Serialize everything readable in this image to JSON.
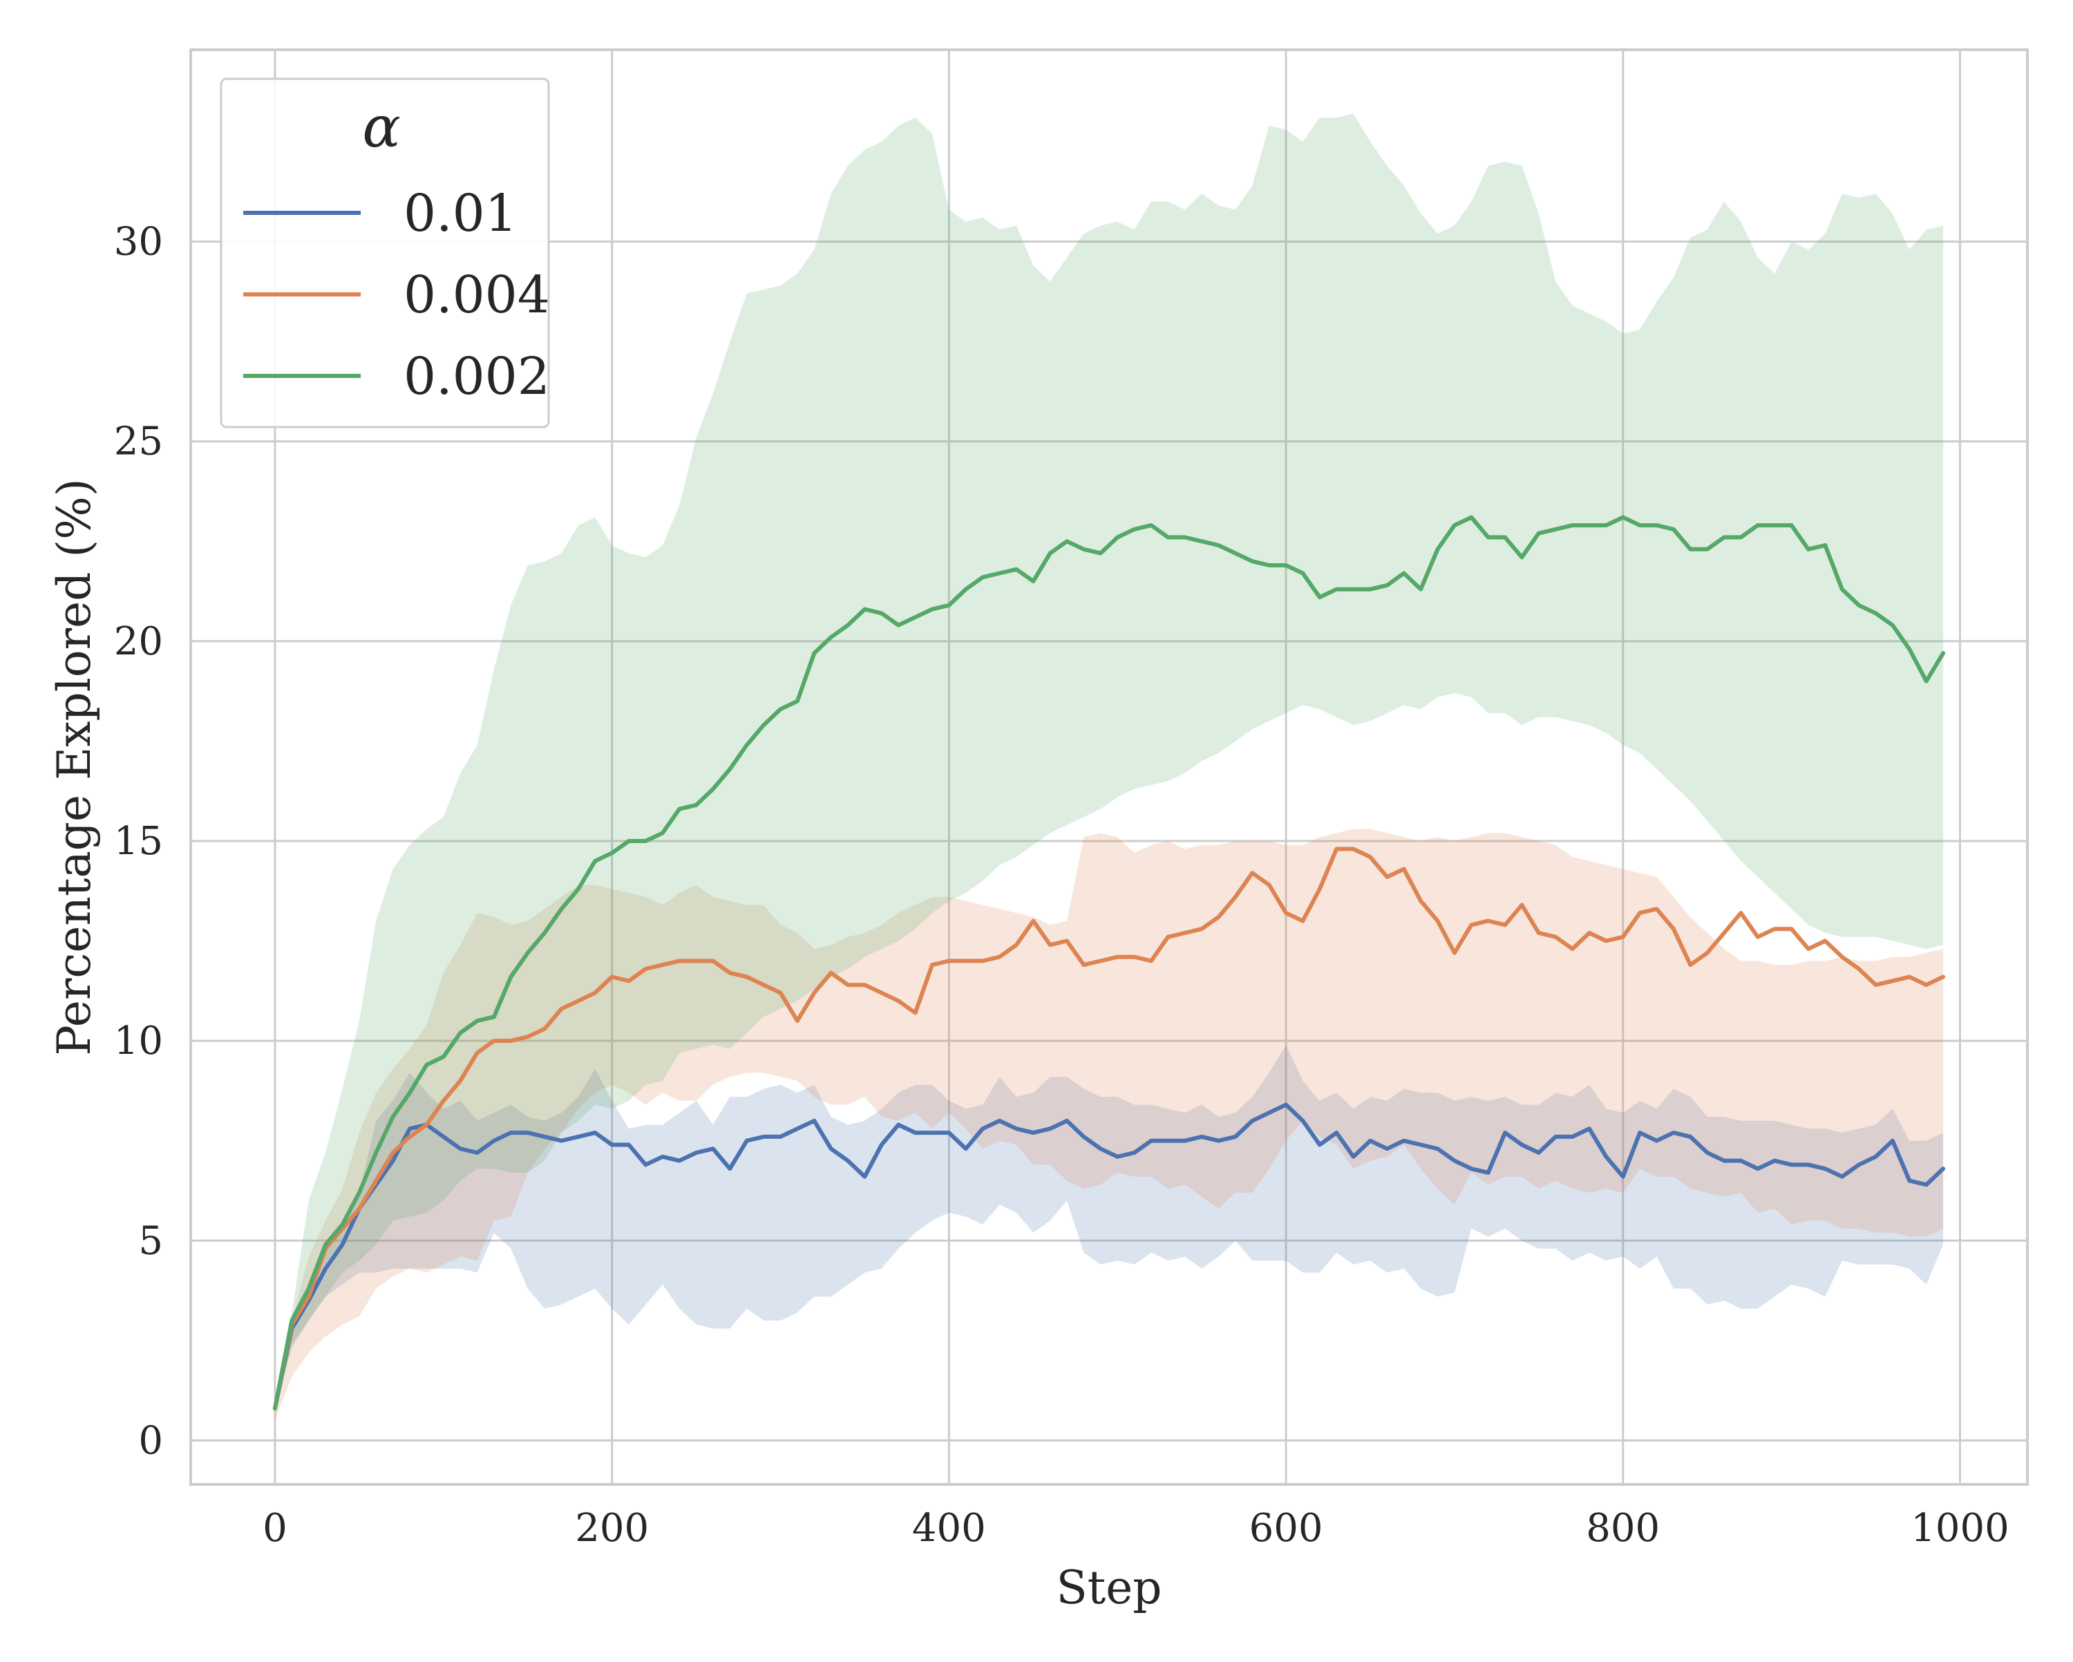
{
  "chart_data": {
    "type": "line",
    "title": "",
    "xlabel": "Step",
    "ylabel": "Percentage Explored (%)",
    "xlim": [
      -50,
      1040
    ],
    "ylim": [
      -1.1,
      34.8
    ],
    "x_ticks": [
      0,
      200,
      400,
      600,
      800,
      1000
    ],
    "y_ticks": [
      0,
      5,
      10,
      15,
      20,
      25,
      30
    ],
    "grid": true,
    "legend_title": "α",
    "legend_position": "upper left",
    "x": [
      0,
      10,
      20,
      30,
      40,
      50,
      60,
      70,
      80,
      90,
      100,
      110,
      120,
      130,
      140,
      150,
      160,
      170,
      180,
      190,
      200,
      210,
      220,
      230,
      240,
      250,
      260,
      270,
      280,
      290,
      300,
      310,
      320,
      330,
      340,
      350,
      360,
      370,
      380,
      390,
      400,
      410,
      420,
      430,
      440,
      450,
      460,
      470,
      480,
      490,
      500,
      510,
      520,
      530,
      540,
      550,
      560,
      570,
      580,
      590,
      600,
      610,
      620,
      630,
      640,
      650,
      660,
      670,
      680,
      690,
      700,
      710,
      720,
      730,
      740,
      750,
      760,
      770,
      780,
      790,
      800,
      810,
      820,
      830,
      840,
      850,
      860,
      870,
      880,
      890,
      900,
      910,
      920,
      930,
      940,
      950,
      960,
      970,
      980,
      990
    ],
    "series": [
      {
        "name": "0.01",
        "color": "#4c72b0",
        "values": [
          0.8,
          2.8,
          3.5,
          4.3,
          4.9,
          5.8,
          6.4,
          7.0,
          7.8,
          7.9,
          7.6,
          7.3,
          7.2,
          7.5,
          7.7,
          7.7,
          7.6,
          7.5,
          7.6,
          7.7,
          7.4,
          7.4,
          6.9,
          7.1,
          7.0,
          7.2,
          7.3,
          6.8,
          7.5,
          7.6,
          7.6,
          7.8,
          8.0,
          7.3,
          7.0,
          6.6,
          7.4,
          7.9,
          7.7,
          7.7,
          7.7,
          7.3,
          7.8,
          8.0,
          7.8,
          7.7,
          7.8,
          8.0,
          7.6,
          7.3,
          7.1,
          7.2,
          7.5,
          7.5,
          7.5,
          7.6,
          7.5,
          7.6,
          8.0,
          8.2,
          8.4,
          8.0,
          7.4,
          7.7,
          7.1,
          7.5,
          7.3,
          7.5,
          7.4,
          7.3,
          7.0,
          6.8,
          6.7,
          7.7,
          7.4,
          7.2,
          7.6,
          7.6,
          7.8,
          7.1,
          6.6,
          7.7,
          7.5,
          7.7,
          7.6,
          7.2,
          7.0,
          7.0,
          6.8,
          7.0,
          6.9,
          6.9,
          6.8,
          6.6,
          6.9,
          7.1,
          7.5,
          6.5,
          6.4,
          6.8
        ],
        "lower": [
          0.8,
          2.4,
          3.0,
          3.6,
          3.9,
          4.2,
          4.2,
          4.3,
          4.3,
          4.3,
          4.3,
          4.3,
          4.2,
          5.2,
          4.8,
          3.8,
          3.3,
          3.4,
          3.6,
          3.8,
          3.3,
          2.9,
          3.4,
          3.9,
          3.3,
          2.9,
          2.8,
          2.8,
          3.3,
          3.0,
          3.0,
          3.2,
          3.6,
          3.6,
          3.9,
          4.2,
          4.3,
          4.8,
          5.2,
          5.5,
          5.7,
          5.6,
          5.4,
          5.9,
          5.7,
          5.2,
          5.5,
          6.0,
          4.7,
          4.4,
          4.5,
          4.4,
          4.7,
          4.5,
          4.6,
          4.3,
          4.6,
          5.0,
          4.5,
          4.5,
          4.5,
          4.2,
          4.2,
          4.7,
          4.4,
          4.5,
          4.2,
          4.3,
          3.8,
          3.6,
          3.7,
          5.3,
          5.1,
          5.3,
          5.0,
          4.8,
          4.8,
          4.5,
          4.7,
          4.5,
          4.6,
          4.3,
          4.6,
          3.8,
          3.8,
          3.4,
          3.5,
          3.3,
          3.3,
          3.6,
          3.9,
          3.8,
          3.6,
          4.5,
          4.4,
          4.4,
          4.4,
          4.3,
          3.9,
          4.9
        ],
        "upper": [
          0.8,
          2.9,
          3.8,
          4.8,
          5.5,
          6.2,
          8.0,
          8.5,
          9.2,
          8.7,
          8.3,
          8.5,
          8.0,
          8.2,
          8.4,
          8.1,
          8.0,
          8.2,
          8.6,
          9.3,
          8.5,
          7.8,
          7.9,
          7.9,
          8.2,
          8.5,
          7.9,
          8.6,
          8.6,
          8.8,
          8.9,
          8.7,
          8.9,
          8.1,
          7.9,
          8.0,
          8.3,
          8.7,
          8.9,
          8.9,
          8.5,
          8.3,
          8.4,
          9.1,
          8.6,
          8.7,
          9.1,
          9.1,
          8.8,
          8.6,
          8.6,
          8.4,
          8.4,
          8.3,
          8.2,
          8.4,
          8.1,
          8.2,
          8.6,
          9.2,
          9.9,
          9.0,
          8.5,
          8.7,
          8.3,
          8.6,
          8.5,
          8.8,
          8.7,
          8.7,
          8.5,
          8.6,
          8.5,
          8.6,
          8.4,
          8.4,
          8.7,
          8.6,
          8.9,
          8.3,
          8.2,
          8.5,
          8.3,
          8.8,
          8.6,
          8.1,
          8.1,
          8.0,
          8.0,
          8.0,
          7.9,
          7.8,
          7.8,
          7.7,
          7.8,
          7.9,
          8.3,
          7.5,
          7.5,
          7.7
        ]
      },
      {
        "name": "0.004",
        "color": "#dd8452",
        "values": [
          0.8,
          2.9,
          3.6,
          4.8,
          5.3,
          5.8,
          6.5,
          7.2,
          7.6,
          7.9,
          8.5,
          9.0,
          9.7,
          10.0,
          10.0,
          10.1,
          10.3,
          10.8,
          11.0,
          11.2,
          11.6,
          11.5,
          11.8,
          11.9,
          12.0,
          12.0,
          12.0,
          11.7,
          11.6,
          11.4,
          11.2,
          10.5,
          11.2,
          11.7,
          11.4,
          11.4,
          11.2,
          11.0,
          10.7,
          11.9,
          12.0,
          12.0,
          12.0,
          12.1,
          12.4,
          13.0,
          12.4,
          12.5,
          11.9,
          12.0,
          12.1,
          12.1,
          12.0,
          12.6,
          12.7,
          12.8,
          13.1,
          13.6,
          14.2,
          13.9,
          13.2,
          13.0,
          13.8,
          14.8,
          14.8,
          14.6,
          14.1,
          14.3,
          13.5,
          13.0,
          12.2,
          12.9,
          13.0,
          12.9,
          13.4,
          12.7,
          12.6,
          12.3,
          12.7,
          12.5,
          12.6,
          13.2,
          13.3,
          12.8,
          11.9,
          12.2,
          12.7,
          13.2,
          12.6,
          12.8,
          12.8,
          12.3,
          12.5,
          12.1,
          11.8,
          11.4,
          11.5,
          11.6,
          11.4,
          11.6
        ],
        "lower": [
          0.5,
          1.6,
          2.2,
          2.6,
          2.9,
          3.1,
          3.8,
          4.1,
          4.3,
          4.2,
          4.4,
          4.6,
          4.5,
          5.5,
          5.6,
          6.7,
          7.3,
          7.7,
          8.3,
          8.7,
          8.9,
          8.7,
          8.4,
          8.7,
          8.5,
          8.5,
          8.9,
          9.1,
          9.2,
          9.2,
          9.1,
          9.0,
          8.6,
          8.4,
          8.4,
          8.6,
          8.1,
          8.0,
          8.2,
          7.8,
          8.2,
          7.8,
          7.3,
          7.5,
          7.4,
          6.9,
          6.9,
          6.5,
          6.3,
          6.4,
          6.7,
          6.6,
          6.6,
          6.3,
          6.4,
          6.1,
          5.8,
          6.2,
          6.2,
          6.8,
          7.5,
          8.0,
          7.6,
          7.4,
          6.8,
          7.0,
          7.1,
          7.4,
          6.8,
          6.3,
          5.9,
          6.7,
          6.4,
          6.6,
          6.6,
          6.3,
          6.5,
          6.3,
          6.2,
          6.3,
          6.2,
          6.8,
          6.6,
          6.6,
          6.3,
          6.2,
          6.1,
          6.2,
          5.7,
          5.8,
          5.4,
          5.5,
          5.5,
          5.3,
          5.3,
          5.2,
          5.2,
          5.1,
          5.1,
          5.3
        ],
        "upper": [
          1.1,
          3.0,
          4.6,
          5.5,
          6.3,
          7.7,
          8.7,
          9.3,
          9.8,
          10.4,
          11.7,
          12.4,
          13.2,
          13.1,
          12.9,
          13.0,
          13.3,
          13.6,
          13.9,
          13.9,
          13.8,
          13.7,
          13.6,
          13.4,
          13.7,
          13.9,
          13.6,
          13.5,
          13.4,
          13.4,
          12.9,
          12.7,
          12.3,
          12.4,
          12.6,
          12.7,
          12.9,
          13.2,
          13.4,
          13.6,
          13.6,
          13.5,
          13.4,
          13.3,
          13.2,
          13.1,
          12.9,
          13.0,
          15.1,
          15.2,
          15.1,
          14.7,
          14.9,
          15.0,
          14.8,
          14.9,
          14.9,
          15.0,
          15.0,
          15.0,
          14.9,
          14.9,
          15.1,
          15.2,
          15.3,
          15.3,
          15.2,
          15.1,
          15.0,
          15.1,
          15.0,
          15.1,
          15.2,
          15.2,
          15.1,
          15.0,
          14.9,
          14.6,
          14.5,
          14.4,
          14.3,
          14.2,
          14.1,
          13.6,
          13.1,
          12.7,
          12.3,
          12.0,
          12.0,
          11.9,
          11.9,
          12.0,
          12.0,
          12.1,
          12.0,
          12.0,
          12.1,
          12.1,
          12.2,
          12.3
        ]
      },
      {
        "name": "0.002",
        "color": "#55a868",
        "values": [
          0.8,
          3.0,
          3.8,
          4.9,
          5.4,
          6.2,
          7.2,
          8.1,
          8.7,
          9.4,
          9.6,
          10.2,
          10.5,
          10.6,
          11.6,
          12.2,
          12.7,
          13.3,
          13.8,
          14.5,
          14.7,
          15.0,
          15.0,
          15.2,
          15.8,
          15.9,
          16.3,
          16.8,
          17.4,
          17.9,
          18.3,
          18.5,
          19.7,
          20.1,
          20.4,
          20.8,
          20.7,
          20.4,
          20.6,
          20.8,
          20.9,
          21.3,
          21.6,
          21.7,
          21.8,
          21.5,
          22.2,
          22.5,
          22.3,
          22.2,
          22.6,
          22.8,
          22.9,
          22.6,
          22.6,
          22.5,
          22.4,
          22.2,
          22.0,
          21.9,
          21.9,
          21.7,
          21.1,
          21.3,
          21.3,
          21.3,
          21.4,
          21.7,
          21.3,
          22.3,
          22.9,
          23.1,
          22.6,
          22.6,
          22.1,
          22.7,
          22.8,
          22.9,
          22.9,
          22.9,
          23.1,
          22.9,
          22.9,
          22.8,
          22.3,
          22.3,
          22.6,
          22.6,
          22.9,
          22.9,
          22.9,
          22.3,
          22.4,
          21.3,
          20.9,
          20.7,
          20.4,
          19.8,
          19.0,
          19.7
        ],
        "lower": [
          0.8,
          2.3,
          3.0,
          3.6,
          4.2,
          4.5,
          4.9,
          5.5,
          5.6,
          5.7,
          6.0,
          6.5,
          6.8,
          6.8,
          6.7,
          6.7,
          7.0,
          7.7,
          8.0,
          8.4,
          8.3,
          8.5,
          8.9,
          9.0,
          9.7,
          9.8,
          9.9,
          9.8,
          10.2,
          10.6,
          10.8,
          11.0,
          11.3,
          11.6,
          11.8,
          12.1,
          12.3,
          12.5,
          12.8,
          13.2,
          13.5,
          13.7,
          14.0,
          14.4,
          14.6,
          14.9,
          15.2,
          15.4,
          15.6,
          15.8,
          16.1,
          16.3,
          16.4,
          16.5,
          16.7,
          17.0,
          17.2,
          17.5,
          17.8,
          18.0,
          18.2,
          18.4,
          18.3,
          18.1,
          17.9,
          18.0,
          18.2,
          18.4,
          18.3,
          18.6,
          18.7,
          18.6,
          18.2,
          18.2,
          17.9,
          18.1,
          18.1,
          18.0,
          17.9,
          17.7,
          17.4,
          17.2,
          16.8,
          16.4,
          16.0,
          15.5,
          15.0,
          14.5,
          14.1,
          13.7,
          13.3,
          12.9,
          12.7,
          12.6,
          12.6,
          12.6,
          12.5,
          12.4,
          12.3,
          12.4
        ],
        "upper": [
          1.0,
          3.2,
          6.0,
          7.2,
          8.8,
          10.5,
          13.0,
          14.3,
          14.9,
          15.3,
          15.6,
          16.7,
          17.4,
          19.3,
          20.9,
          21.9,
          22.0,
          22.2,
          22.9,
          23.1,
          22.4,
          22.2,
          22.1,
          22.4,
          23.4,
          25.1,
          26.2,
          27.5,
          28.7,
          28.8,
          28.9,
          29.2,
          29.8,
          31.2,
          31.9,
          32.3,
          32.5,
          32.9,
          33.1,
          32.7,
          30.8,
          30.5,
          30.6,
          30.3,
          30.4,
          29.4,
          29.0,
          29.6,
          30.2,
          30.4,
          30.5,
          30.3,
          31.0,
          31.0,
          30.8,
          31.2,
          30.9,
          30.8,
          31.4,
          32.9,
          32.8,
          32.5,
          33.1,
          33.1,
          33.2,
          32.5,
          31.9,
          31.4,
          30.7,
          30.2,
          30.4,
          31.0,
          31.9,
          32.0,
          31.9,
          30.7,
          29.0,
          28.4,
          28.2,
          28.0,
          27.7,
          27.8,
          28.5,
          29.1,
          30.1,
          30.3,
          31.0,
          30.5,
          29.6,
          29.2,
          30.0,
          29.8,
          30.2,
          31.2,
          31.1,
          31.2,
          30.7,
          29.8,
          30.3,
          30.4
        ]
      }
    ]
  }
}
